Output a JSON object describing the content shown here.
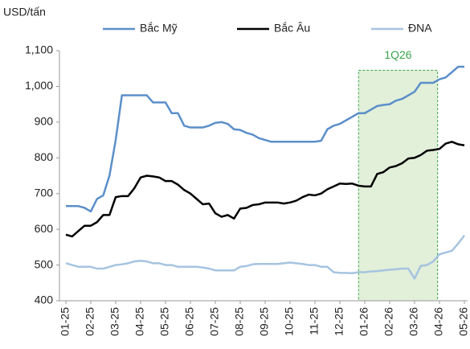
{
  "chart_data": {
    "type": "line",
    "y_axis_label": "USD/tấn",
    "categories": [
      "01-25",
      null,
      null,
      null,
      "02-25",
      null,
      null,
      null,
      "03-25",
      null,
      null,
      null,
      "04-25",
      null,
      null,
      null,
      "05-25",
      null,
      null,
      null,
      "06-25",
      null,
      null,
      null,
      "07-25",
      null,
      null,
      null,
      "08-25",
      null,
      null,
      null,
      "09-25",
      null,
      null,
      null,
      "10-25",
      null,
      null,
      null,
      "11-25",
      null,
      null,
      null,
      "12-25",
      null,
      null,
      null,
      "01-26",
      null,
      null,
      null,
      "02-26",
      null,
      null,
      null,
      "03-26",
      null,
      null,
      null,
      "04-26",
      null,
      null,
      null,
      "05-26"
    ],
    "series": [
      {
        "name": "Bắc Mỹ",
        "color": "#5b8fc9",
        "values": [
          665,
          665,
          665,
          660,
          650,
          685,
          695,
          750,
          850,
          975,
          975,
          975,
          975,
          975,
          955,
          955,
          955,
          925,
          925,
          890,
          885,
          885,
          885,
          890,
          898,
          900,
          895,
          880,
          878,
          870,
          865,
          855,
          850,
          845,
          845,
          845,
          845,
          845,
          845,
          845,
          845,
          848,
          880,
          890,
          895,
          905,
          915,
          925,
          925,
          935,
          945,
          948,
          950,
          960,
          965,
          975,
          985,
          1010,
          1010,
          1010,
          1020,
          1025,
          1040,
          1055,
          1055
        ]
      },
      {
        "name": "Bắc Âu",
        "color": "#000000",
        "values": [
          585,
          580,
          595,
          610,
          610,
          620,
          640,
          640,
          690,
          693,
          693,
          715,
          745,
          750,
          748,
          745,
          735,
          735,
          725,
          710,
          700,
          685,
          670,
          672,
          645,
          635,
          640,
          630,
          658,
          660,
          668,
          670,
          675,
          675,
          675,
          672,
          675,
          680,
          690,
          697,
          695,
          700,
          712,
          720,
          728,
          727,
          728,
          722,
          720,
          720,
          755,
          760,
          773,
          777,
          785,
          798,
          800,
          808,
          820,
          822,
          825,
          840,
          845,
          838,
          835
        ]
      },
      {
        "name": "ĐNA",
        "color": "#a6c4e0",
        "values": [
          505,
          500,
          495,
          495,
          495,
          490,
          490,
          495,
          500,
          502,
          505,
          510,
          512,
          510,
          505,
          505,
          500,
          500,
          495,
          495,
          495,
          495,
          493,
          490,
          485,
          485,
          485,
          485,
          495,
          497,
          502,
          503,
          503,
          503,
          503,
          505,
          507,
          505,
          503,
          500,
          500,
          495,
          495,
          480,
          478,
          478,
          477,
          480,
          480,
          482,
          483,
          485,
          487,
          488,
          490,
          490,
          462,
          498,
          500,
          510,
          530,
          535,
          540,
          560,
          583
        ]
      }
    ],
    "highlight": {
      "label": "1Q26",
      "x_range": [
        47,
        59.7
      ],
      "top": 1045
    },
    "ylim": [
      400,
      1100
    ],
    "yticks": [
      400,
      500,
      600,
      700,
      800,
      900,
      {
        "value": 1000,
        "label": "1,000"
      },
      {
        "value": 1100,
        "label": "1,100"
      }
    ],
    "legend": "top"
  }
}
